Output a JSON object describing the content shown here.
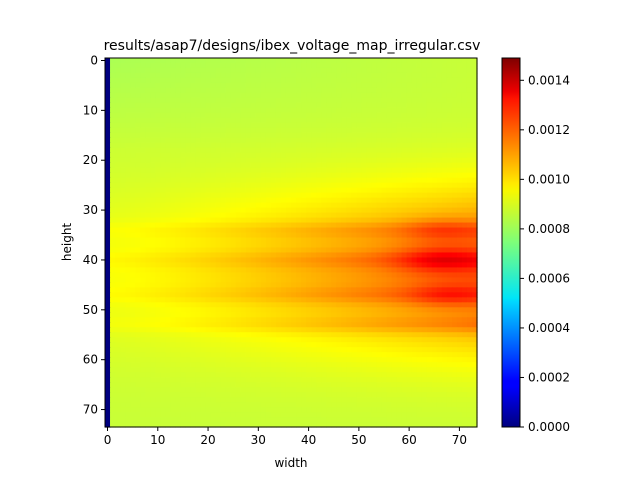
{
  "chart_data": {
    "type": "heatmap",
    "title": "results/asap7/designs/ibex_voltage_map_irregular.csv",
    "xlabel": "width",
    "ylabel": "height",
    "grid_size": [
      74,
      74
    ],
    "xlim": [
      0,
      73
    ],
    "ylim": [
      73,
      0
    ],
    "x_ticks": [
      0,
      10,
      20,
      30,
      40,
      50,
      60,
      70
    ],
    "y_ticks": [
      0,
      10,
      20,
      30,
      40,
      50,
      60,
      70
    ],
    "colormap": "jet",
    "colorbar": {
      "min": 0.0,
      "max": 0.00149,
      "ticks": [
        0.0,
        0.0002,
        0.0004,
        0.0006,
        0.0008,
        0.001,
        0.0012,
        0.0014
      ],
      "tick_labels": [
        "0.0000",
        "0.0002",
        "0.0004",
        "0.0006",
        "0.0008",
        "0.0010",
        "0.0012",
        "0.0014"
      ]
    },
    "features": {
      "column_0_value": 0.0,
      "background_value": 0.00085,
      "hotspot_center": [
        66,
        40
      ],
      "hotspot_value": 0.00149,
      "stripe_rows": [
        34,
        40,
        47,
        53
      ]
    }
  }
}
